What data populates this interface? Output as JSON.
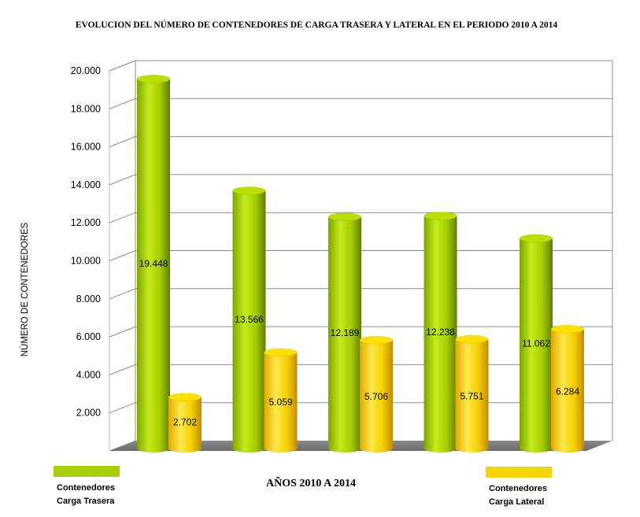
{
  "chart_data": {
    "type": "bar",
    "title": "EVOLUCION DEL NÚMERO DE CONTENEDORES DE CARGA TRASERA Y LATERAL EN EL PERIODO 2010 A 2014",
    "xlabel": "AÑOS 2010 A 2014",
    "ylabel": "NÚMERO DE CONTENEDORES",
    "ylim": [
      0,
      20000
    ],
    "yticks": [
      2000,
      4000,
      6000,
      8000,
      10000,
      12000,
      14000,
      16000,
      18000,
      20000
    ],
    "ytick_labels": [
      "2.000",
      "4.000",
      "6.000",
      "8.000",
      "10.000",
      "12.000",
      "14.000",
      "16.000",
      "18.000",
      "20.000"
    ],
    "grid": true,
    "categories_count": 5,
    "series": [
      {
        "name": "Contenedores Carga Trasera",
        "legend_lines": [
          "Contenedores",
          "Carga Trasera"
        ],
        "color": "#a8cf00",
        "values": [
          19448,
          13566,
          12189,
          12238,
          11062
        ],
        "labels": [
          "19.448",
          "13.566",
          "12.189",
          "12.238",
          "11.062"
        ]
      },
      {
        "name": "Contenedores Carga Lateral",
        "legend_lines": [
          "Contenedores",
          "Carga Lateral"
        ],
        "color": "#f7d300",
        "values": [
          2702,
          5059,
          5706,
          5751,
          6284
        ],
        "labels": [
          "2.702",
          "5.059",
          "5.706",
          "5.751",
          "6.284"
        ]
      }
    ],
    "legend": "bottom"
  }
}
